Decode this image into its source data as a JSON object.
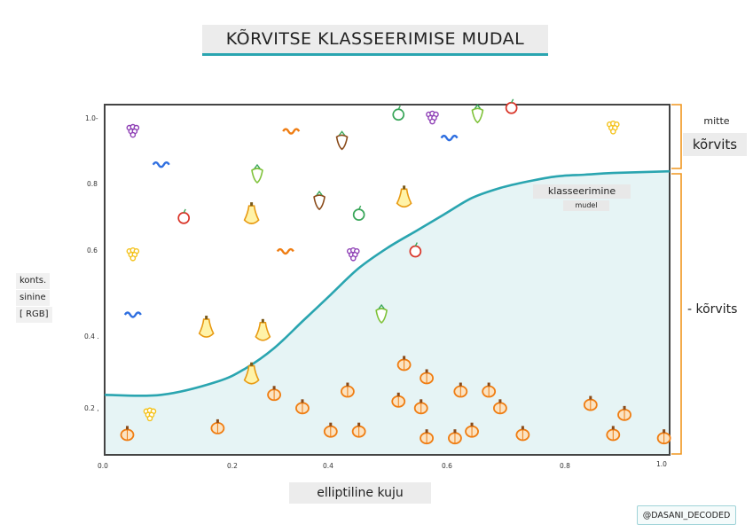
{
  "title": "KÕRVITSE KLASSEERIMISE MUDAL",
  "ylabel": [
    "konts.",
    "sinine",
    "[ RGB]"
  ],
  "xlabel": "elliptiline kuju",
  "right_labels": {
    "top_small": "mitte",
    "top_big": "kõrvits",
    "bottom": "- kõrvits"
  },
  "curve_label": "klasseerimine",
  "curve_sublabel": "mudel",
  "credit": "@DASANI_DECODED",
  "colors": {
    "curve": "#2aa5b0",
    "region_fill": "#e6f4f5",
    "brace": "#f0961e",
    "frame": "#444444"
  },
  "chart_data": {
    "type": "scatter",
    "x_ticks": [
      "0.0",
      "0.2",
      "0.4",
      "0.6",
      "0.8",
      "1.0"
    ],
    "y_ticks": [
      "1.0-",
      "0.8",
      "0.6",
      "0.4 .",
      "0.2 ,"
    ],
    "xlim": [
      0,
      1
    ],
    "ylim": [
      0,
      1.05
    ],
    "boundary_curve": [
      [
        0.0,
        0.18
      ],
      [
        0.1,
        0.18
      ],
      [
        0.2,
        0.22
      ],
      [
        0.25,
        0.26
      ],
      [
        0.3,
        0.32
      ],
      [
        0.35,
        0.4
      ],
      [
        0.4,
        0.48
      ],
      [
        0.45,
        0.56
      ],
      [
        0.5,
        0.62
      ],
      [
        0.55,
        0.67
      ],
      [
        0.6,
        0.72
      ],
      [
        0.65,
        0.77
      ],
      [
        0.7,
        0.8
      ],
      [
        0.75,
        0.82
      ],
      [
        0.8,
        0.835
      ],
      [
        0.85,
        0.84
      ],
      [
        0.9,
        0.845
      ],
      [
        1.0,
        0.85
      ]
    ],
    "pumpkins": [
      [
        0.04,
        0.06
      ],
      [
        0.2,
        0.08
      ],
      [
        0.3,
        0.18
      ],
      [
        0.35,
        0.14
      ],
      [
        0.4,
        0.07
      ],
      [
        0.43,
        0.19
      ],
      [
        0.45,
        0.07
      ],
      [
        0.53,
        0.27
      ],
      [
        0.57,
        0.23
      ],
      [
        0.52,
        0.16
      ],
      [
        0.56,
        0.14
      ],
      [
        0.57,
        0.05
      ],
      [
        0.62,
        0.05
      ],
      [
        0.63,
        0.19
      ],
      [
        0.65,
        0.07
      ],
      [
        0.68,
        0.19
      ],
      [
        0.7,
        0.14
      ],
      [
        0.74,
        0.06
      ],
      [
        0.86,
        0.15
      ],
      [
        0.9,
        0.06
      ],
      [
        0.92,
        0.12
      ],
      [
        0.99,
        0.05
      ]
    ],
    "squashes": [
      [
        0.26,
        0.72
      ],
      [
        0.28,
        0.37
      ],
      [
        0.53,
        0.77
      ],
      [
        0.18,
        0.38
      ],
      [
        0.26,
        0.24
      ]
    ],
    "other_produce": [
      [
        0.05,
        0.97
      ],
      [
        0.1,
        0.87
      ],
      [
        0.27,
        0.84
      ],
      [
        0.14,
        0.71
      ],
      [
        0.05,
        0.6
      ],
      [
        0.32,
        0.61
      ],
      [
        0.38,
        0.76
      ],
      [
        0.45,
        0.72
      ],
      [
        0.44,
        0.6
      ],
      [
        0.05,
        0.42
      ],
      [
        0.49,
        0.42
      ],
      [
        0.55,
        0.61
      ],
      [
        0.08,
        0.12
      ],
      [
        0.33,
        0.97
      ],
      [
        0.42,
        0.94
      ],
      [
        0.52,
        1.02
      ],
      [
        0.58,
        1.01
      ],
      [
        0.61,
        0.95
      ],
      [
        0.66,
        1.02
      ],
      [
        0.72,
        1.04
      ],
      [
        0.9,
        0.98
      ]
    ]
  }
}
